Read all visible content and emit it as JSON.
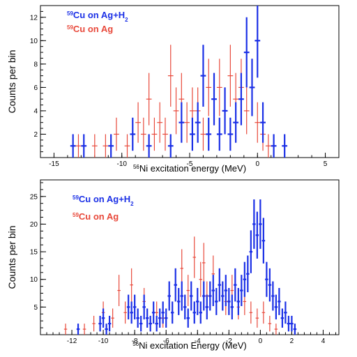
{
  "colors": {
    "blue": "#1a2fe6",
    "red": "#e8483a",
    "axis": "#000000"
  },
  "chart_data": [
    {
      "type": "histogram",
      "xlabel": {
        "sup": "56",
        "text": "Ni excitation energy (MeV)"
      },
      "ylabel": "Counts per bin",
      "xlim": [
        -16,
        6
      ],
      "ylim": [
        0,
        13
      ],
      "xticks": [
        -15,
        -10,
        -5,
        0,
        5
      ],
      "yticks": [
        2,
        4,
        6,
        8,
        10,
        12
      ],
      "bin_width": 0.4,
      "legend": "top-left",
      "series": [
        {
          "name": {
            "sup": "59",
            "text": "Cu on Ag+H",
            "sub": "2"
          },
          "color": "#1a2fe6",
          "x": [
            -13.6,
            -12.8,
            -10.8,
            -9.2,
            -8.0,
            -6.4,
            -5.6,
            -4.8,
            -4.4,
            -4.0,
            -3.6,
            -3.2,
            -2.8,
            -2.4,
            -2.0,
            -1.6,
            -1.2,
            -0.8,
            -0.4,
            0.0,
            0.4,
            1.2,
            2.0
          ],
          "values": [
            1,
            1,
            1,
            2,
            1,
            1,
            3,
            2,
            3,
            7,
            2,
            5,
            2,
            4,
            2,
            3,
            5,
            9,
            6,
            10,
            3,
            1,
            1
          ]
        },
        {
          "name": {
            "sup": "59",
            "text": "Cu on Ag"
          },
          "color": "#e8483a",
          "x": [
            -13.2,
            -12.0,
            -11.2,
            -10.4,
            -9.6,
            -8.8,
            -8.4,
            -8.0,
            -7.6,
            -7.2,
            -6.8,
            -6.4,
            -6.0,
            -5.6,
            -5.2,
            -4.8,
            -4.4,
            -4.0,
            -3.6,
            -3.2,
            -2.8,
            -2.4,
            -2.0,
            -1.6,
            -1.2,
            -0.8,
            -0.4,
            0.0,
            0.4,
            0.8,
            1.2
          ],
          "values": [
            1,
            1,
            1,
            2,
            1,
            3,
            2,
            5,
            2,
            3,
            2,
            7,
            4,
            5,
            3,
            4,
            4,
            2,
            6,
            5,
            6,
            4,
            7,
            5,
            6,
            4,
            6,
            3,
            2,
            1,
            1
          ]
        }
      ]
    },
    {
      "type": "histogram",
      "xlabel": {
        "sup": "56",
        "text": "Ni excitation Energy (MeV)"
      },
      "ylabel": "Counts per bin",
      "xlim": [
        -14,
        5
      ],
      "ylim": [
        0,
        28
      ],
      "xticks": [
        -12,
        -10,
        -8,
        -6,
        -4,
        -2,
        0,
        2,
        4
      ],
      "yticks": [
        5,
        10,
        15,
        20,
        25
      ],
      "bin_width": 0.2,
      "legend": "top-left",
      "series": [
        {
          "name": {
            "sup": "59",
            "text": "Cu on Ag+H",
            "sub": "2"
          },
          "color": "#1a2fe6",
          "x": [
            -11.6,
            -10.2,
            -10.0,
            -9.8,
            -9.6,
            -8.4,
            -8.2,
            -8.0,
            -7.8,
            -7.6,
            -7.4,
            -7.2,
            -7.0,
            -6.8,
            -6.6,
            -6.4,
            -6.2,
            -6.0,
            -5.8,
            -5.6,
            -5.4,
            -5.2,
            -5.0,
            -4.8,
            -4.6,
            -4.4,
            -4.2,
            -4.0,
            -3.8,
            -3.6,
            -3.4,
            -3.2,
            -3.0,
            -2.8,
            -2.6,
            -2.4,
            -2.2,
            -2.0,
            -1.8,
            -1.6,
            -1.4,
            -1.2,
            -1.0,
            -0.8,
            -0.6,
            -0.4,
            -0.2,
            0.0,
            0.2,
            0.4,
            0.6,
            0.8,
            1.0,
            1.2,
            1.4,
            1.6,
            1.8,
            2.0,
            2.2
          ],
          "values": [
            1,
            2,
            3,
            1,
            2,
            5,
            4,
            5,
            3,
            2,
            5,
            3,
            2,
            4,
            2,
            3,
            4,
            3,
            7,
            4,
            9,
            6,
            7,
            5,
            3,
            7,
            4,
            6,
            4,
            7,
            5,
            7,
            8,
            6,
            9,
            7,
            8,
            6,
            5,
            9,
            6,
            8,
            10,
            11,
            15,
            20,
            18,
            20,
            17,
            10,
            9,
            7,
            5,
            6,
            3,
            4,
            2,
            2,
            1
          ]
        },
        {
          "name": {
            "sup": "59",
            "text": "Cu on Ag"
          },
          "color": "#e8483a",
          "x": [
            -12.4,
            -11.2,
            -10.6,
            -10.0,
            -9.4,
            -9.0,
            -8.6,
            -8.2,
            -7.8,
            -7.4,
            -7.0,
            -6.6,
            -6.2,
            -5.8,
            -5.4,
            -5.0,
            -4.6,
            -4.2,
            -3.8,
            -3.6,
            -3.4,
            -3.0,
            -2.6,
            -2.2,
            -1.8,
            -1.4,
            -1.0,
            -0.6,
            -0.2,
            0.2,
            0.6,
            1.0
          ],
          "values": [
            1,
            1,
            2,
            4,
            3,
            8,
            4,
            9,
            3,
            6,
            2,
            4,
            3,
            7,
            9,
            12,
            8,
            14,
            10,
            13,
            7,
            11,
            9,
            6,
            8,
            5,
            6,
            4,
            3,
            4,
            2,
            1
          ]
        }
      ]
    }
  ]
}
